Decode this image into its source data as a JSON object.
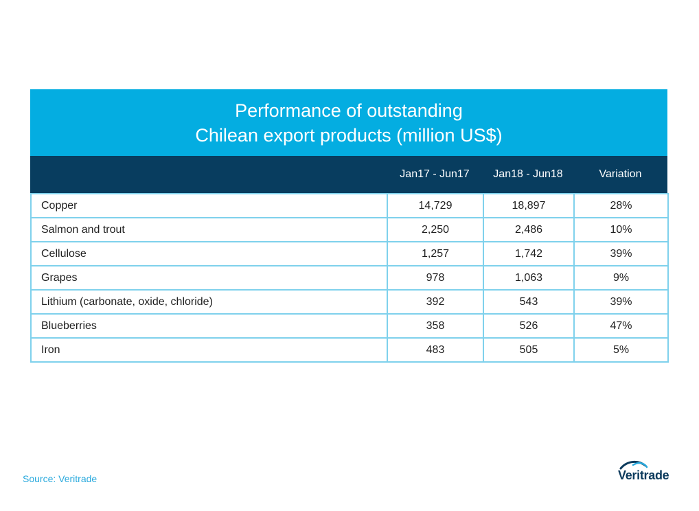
{
  "chart_data": {
    "type": "table",
    "title_line1": "Performance of outstanding",
    "title_line2": "Chilean export products (million US$)",
    "columns": [
      "",
      "Jan17 - Jun17",
      "Jan18 - Jun18",
      "Variation"
    ],
    "rows": [
      {
        "product": "Copper",
        "jan17_jun17": "14,729",
        "jan18_jun18": "18,897",
        "variation": "28%"
      },
      {
        "product": "Salmon and trout",
        "jan17_jun17": "2,250",
        "jan18_jun18": "2,486",
        "variation": "10%"
      },
      {
        "product": "Cellulose",
        "jan17_jun17": "1,257",
        "jan18_jun18": "1,742",
        "variation": "39%"
      },
      {
        "product": "Grapes",
        "jan17_jun17": "978",
        "jan18_jun18": "1,063",
        "variation": "9%"
      },
      {
        "product": "Lithium (carbonate, oxide, chloride)",
        "jan17_jun17": "392",
        "jan18_jun18": "543",
        "variation": "39%"
      },
      {
        "product": "Blueberries",
        "jan17_jun17": "358",
        "jan18_jun18": "526",
        "variation": "47%"
      },
      {
        "product": "Iron",
        "jan17_jun17": "483",
        "jan18_jun18": "505",
        "variation": "5%"
      }
    ]
  },
  "source": "Source: Veritrade",
  "logo": {
    "text": "Veritrade",
    "icon": "veritrade-swoosh-logo"
  },
  "colors": {
    "title_bg": "#04ade1",
    "header_bg": "#083d5f",
    "grid": "#7fd1ec",
    "source_text": "#29a9dd",
    "logo": "#0b3a5c"
  }
}
